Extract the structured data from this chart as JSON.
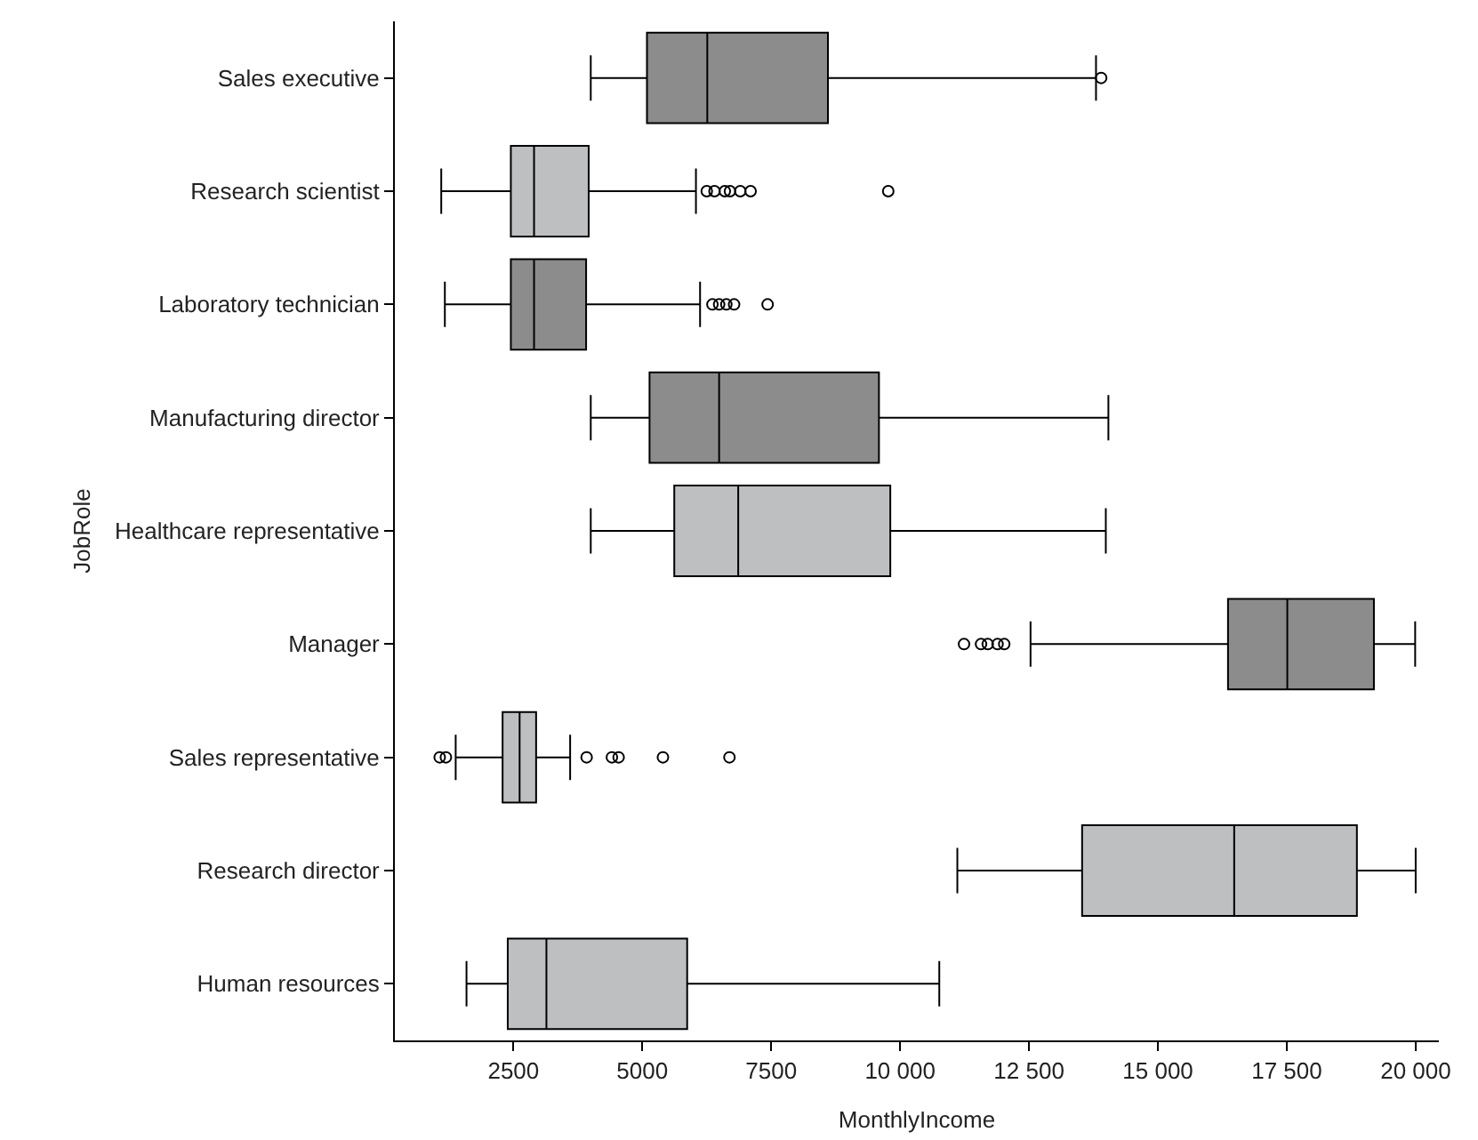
{
  "chart_data": {
    "type": "box",
    "orientation": "horizontal",
    "xlabel": "MonthlyIncome",
    "ylabel": "JobRole",
    "categories": [
      "Sales executive",
      "Research scientist",
      "Laboratory technician",
      "Manufacturing director",
      "Healthcare representative",
      "Manager",
      "Sales representative",
      "Research director",
      "Human resources"
    ],
    "colors": [
      "#8c8c8d",
      "#bebfc1",
      "#8c8c8d",
      "#8c8c8d",
      "#bebfc1",
      "#8c8c8d",
      "#bebfc1",
      "#bebfc1",
      "#bebfc1"
    ],
    "boxes": [
      {
        "low": 4000,
        "q1": 5090,
        "median": 6260,
        "q3": 8600,
        "high": 13800,
        "outliers": [
          13900
        ]
      },
      {
        "low": 1100,
        "q1": 2450,
        "median": 2900,
        "q3": 3960,
        "high": 6040,
        "outliers": [
          6250,
          6400,
          6600,
          6700,
          6900,
          7100,
          9770
        ]
      },
      {
        "low": 1170,
        "q1": 2450,
        "median": 2900,
        "q3": 3910,
        "high": 6120,
        "outliers": [
          6360,
          6490,
          6630,
          6780,
          7430
        ]
      },
      {
        "low": 4000,
        "q1": 5140,
        "median": 6490,
        "q3": 9590,
        "high": 14040
      },
      {
        "low": 4000,
        "q1": 5620,
        "median": 6860,
        "q3": 9810,
        "high": 13990
      },
      {
        "low": 12530,
        "q1": 16360,
        "median": 17510,
        "q3": 19190,
        "high": 19990,
        "outliers": [
          11240,
          11570,
          11700,
          11890,
          12020
        ]
      },
      {
        "low": 1380,
        "q1": 2290,
        "median": 2620,
        "q3": 2940,
        "high": 3600,
        "outliers": [
          1070,
          1190,
          3920,
          4410,
          4540,
          5400,
          6690
        ]
      },
      {
        "low": 11110,
        "q1": 13530,
        "median": 16480,
        "q3": 18860,
        "high": 20000
      },
      {
        "low": 1590,
        "q1": 2390,
        "median": 3140,
        "q3": 5870,
        "high": 10760
      }
    ],
    "xlim": [
      200,
      20450
    ],
    "xticks": [
      2500,
      5000,
      7500,
      {
        "value": 10000,
        "label": "10 000"
      },
      {
        "value": 12500,
        "label": "12 500"
      },
      {
        "value": 15000,
        "label": "15 000"
      },
      {
        "value": 17500,
        "label": "17 500"
      },
      {
        "value": 20000,
        "label": "20 000"
      }
    ],
    "grid": false,
    "marker": "circle"
  }
}
